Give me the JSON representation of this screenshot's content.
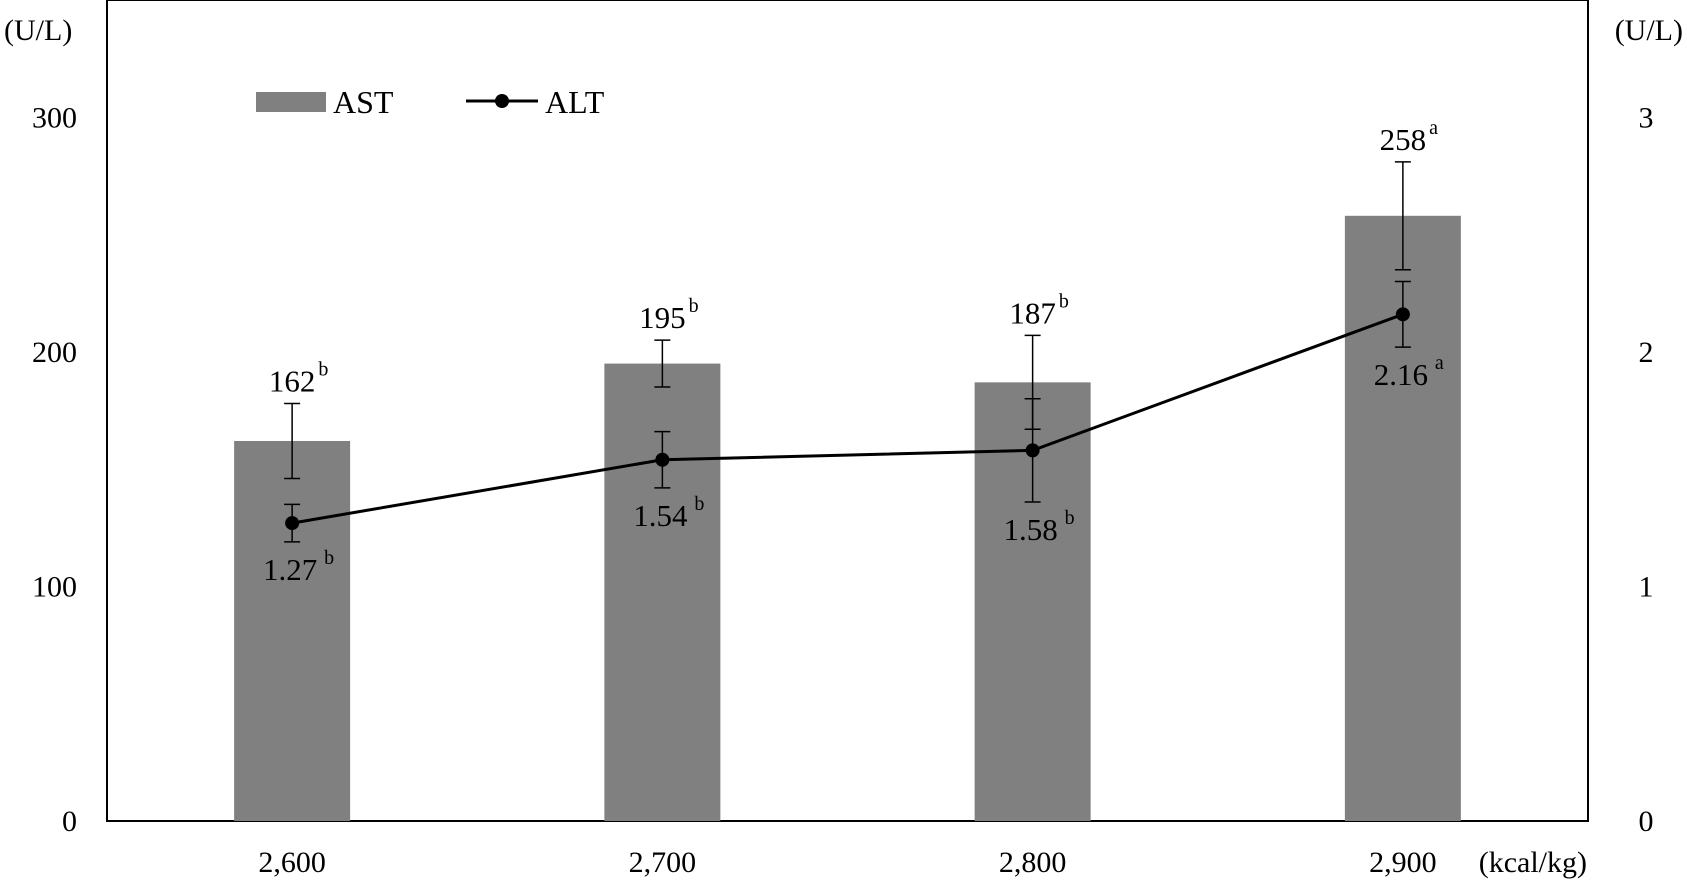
{
  "chart_data": {
    "type": "bar+line",
    "title": "",
    "categories": [
      "2,600",
      "2,700",
      "2,800",
      "2,900"
    ],
    "x_unit": "(kcal/kg)",
    "y_left": {
      "unit": "(U/L)",
      "ylim": [
        0,
        350
      ],
      "ticks": [
        0,
        100,
        200,
        300
      ]
    },
    "y_right": {
      "unit": "(U/L)",
      "ylim": [
        0,
        3.5
      ],
      "ticks": [
        0,
        1,
        2,
        3
      ]
    },
    "grid": false,
    "legend_position": "top-left",
    "colors": {
      "bar": "#808080",
      "line": "#000000"
    },
    "series": [
      {
        "name": "AST",
        "type": "bar",
        "axis": "left",
        "values": [
          162,
          195,
          187,
          258
        ],
        "error": [
          16,
          10,
          20,
          23
        ],
        "labels": [
          "162",
          "195",
          "187",
          "258"
        ],
        "letters": [
          "b",
          "b",
          "b",
          "a"
        ]
      },
      {
        "name": "ALT",
        "type": "line",
        "axis": "right",
        "values": [
          1.27,
          1.54,
          1.58,
          2.16
        ],
        "error": [
          0.08,
          0.12,
          0.22,
          0.14
        ],
        "labels": [
          "1.27",
          "1.54",
          "1.58",
          "2.16"
        ],
        "letters": [
          "b",
          "b",
          "b",
          "a"
        ]
      }
    ]
  }
}
